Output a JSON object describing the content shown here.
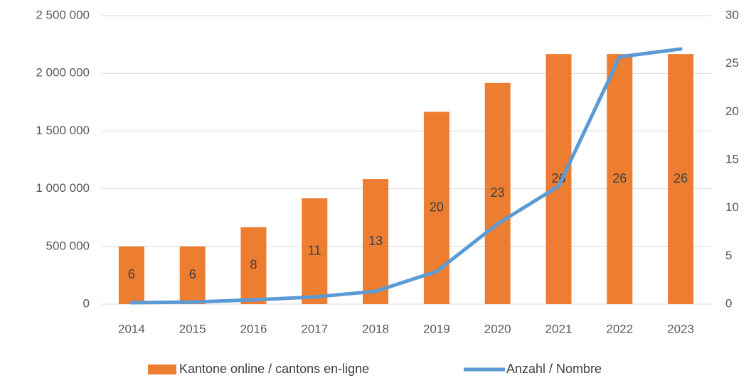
{
  "chart_data": {
    "type": "bar_line",
    "categories": [
      "2014",
      "2015",
      "2016",
      "2017",
      "2018",
      "2019",
      "2020",
      "2021",
      "2022",
      "2023"
    ],
    "series": [
      {
        "name": "Kantone online / cantons en-ligne",
        "type": "bar",
        "axis": "y2",
        "color": "#ed7d31",
        "values": [
          6,
          6,
          8,
          11,
          13,
          20,
          23,
          26,
          26,
          26
        ]
      },
      {
        "name": "Anzahl / Nombre",
        "type": "line",
        "axis": "y",
        "color": "#5b9bd5",
        "values": [
          12000,
          18000,
          37000,
          62000,
          111000,
          283000,
          696000,
          1022000,
          2143000,
          2211000
        ]
      }
    ],
    "ylim": [
      0,
      2500000
    ],
    "yticks": [
      0,
      {
        "value": 500000,
        "label": "500 000"
      },
      {
        "value": 1000000,
        "label": "1 000 000"
      },
      {
        "value": 1500000,
        "label": "1 500 000"
      },
      {
        "value": 2000000,
        "label": "2 000 000"
      },
      {
        "value": 2500000,
        "label": "2 500 000"
      }
    ],
    "y2lim": [
      0,
      30
    ],
    "y2ticks": [
      0,
      5,
      10,
      15,
      20,
      25,
      30
    ],
    "grid": true,
    "legend": "bottom"
  }
}
